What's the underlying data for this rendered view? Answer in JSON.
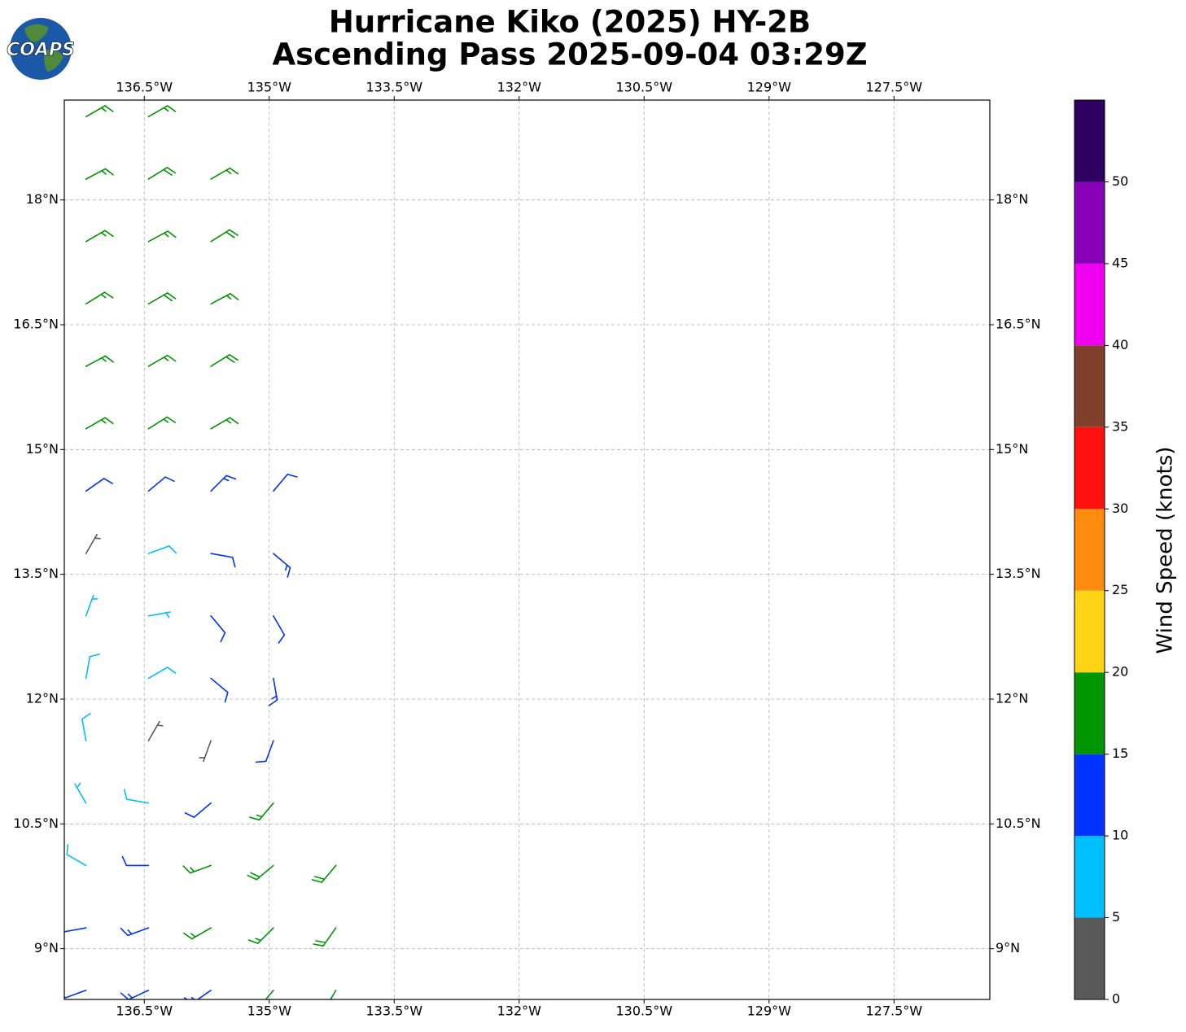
{
  "chart_data": {
    "type": "barbs",
    "title": [
      "Hurricane Kiko (2025) HY-2B",
      "Ascending Pass 2025-09-04 03:29Z"
    ],
    "logo_text": "COAPS",
    "xlim": [
      -137.46,
      -126.35
    ],
    "ylim": [
      8.39,
      19.2
    ],
    "xticks": [
      {
        "value": -136.5,
        "label": "136.5°W"
      },
      {
        "value": -135,
        "label": "135°W"
      },
      {
        "value": -133.5,
        "label": "133.5°W"
      },
      {
        "value": -132,
        "label": "132°W"
      },
      {
        "value": -130.5,
        "label": "130.5°W"
      },
      {
        "value": -129,
        "label": "129°W"
      },
      {
        "value": -127.5,
        "label": "127.5°W"
      }
    ],
    "yticks": [
      {
        "value": 9,
        "label": "9°N"
      },
      {
        "value": 10.5,
        "label": "10.5°N"
      },
      {
        "value": 12,
        "label": "12°N"
      },
      {
        "value": 13.5,
        "label": "13.5°N"
      },
      {
        "value": 15,
        "label": "15°N"
      },
      {
        "value": 16.5,
        "label": "16.5°N"
      },
      {
        "value": 18,
        "label": "18°N"
      }
    ],
    "grid": true,
    "barbs": [
      {
        "lat": 19.0,
        "lon": [
          -137.2,
          -136.45
        ],
        "speed": [
          17,
          16
        ],
        "direction": [
          60,
          60
        ]
      },
      {
        "lat": 18.25,
        "lon": [
          -137.2,
          -136.45,
          -135.7
        ],
        "speed": [
          17,
          18,
          17
        ],
        "direction": [
          62,
          58,
          60
        ]
      },
      {
        "lat": 17.5,
        "lon": [
          -137.2,
          -136.45,
          -135.7
        ],
        "speed": [
          16,
          17,
          18
        ],
        "direction": [
          60,
          62,
          58
        ]
      },
      {
        "lat": 16.75,
        "lon": [
          -137.2,
          -136.45,
          -135.7
        ],
        "speed": [
          17,
          18,
          17
        ],
        "direction": [
          58,
          60,
          62
        ]
      },
      {
        "lat": 16.0,
        "lon": [
          -137.2,
          -136.45,
          -135.7
        ],
        "speed": [
          16,
          17,
          18
        ],
        "direction": [
          62,
          60,
          58
        ]
      },
      {
        "lat": 15.25,
        "lon": [
          -137.2,
          -136.45,
          -135.7
        ],
        "speed": [
          16,
          17,
          17
        ],
        "direction": [
          60,
          58,
          60
        ]
      },
      {
        "lat": 14.5,
        "lon": [
          -137.2,
          -136.45,
          -135.7,
          -134.95
        ],
        "speed": [
          11,
          12,
          13,
          12
        ],
        "direction": [
          55,
          50,
          45,
          40
        ]
      },
      {
        "lat": 13.75,
        "lon": [
          -137.2,
          -136.45,
          -135.7,
          -134.95
        ],
        "speed": [
          3,
          8,
          12,
          13
        ],
        "direction": [
          30,
          70,
          100,
          130
        ]
      },
      {
        "lat": 13.0,
        "lon": [
          -137.2,
          -136.45,
          -135.7,
          -134.95
        ],
        "speed": [
          7,
          6,
          11,
          12
        ],
        "direction": [
          20,
          80,
          140,
          150
        ]
      },
      {
        "lat": 12.25,
        "lon": [
          -137.2,
          -136.45,
          -135.7,
          -134.95
        ],
        "speed": [
          8,
          9,
          10,
          13
        ],
        "direction": [
          10,
          60,
          130,
          170
        ]
      },
      {
        "lat": 11.5,
        "lon": [
          -137.2,
          -136.45,
          -135.7,
          -134.95
        ],
        "speed": [
          8,
          3,
          4,
          12
        ],
        "direction": [
          350,
          30,
          200,
          200
        ]
      },
      {
        "lat": 10.75,
        "lon": [
          -137.2,
          -136.45,
          -135.7,
          -134.95
        ],
        "speed": [
          7,
          9,
          11,
          17
        ],
        "direction": [
          330,
          280,
          230,
          220
        ]
      },
      {
        "lat": 10.0,
        "lon": [
          -137.2,
          -136.45,
          -135.7,
          -134.95,
          -134.2
        ],
        "speed": [
          8,
          12,
          16,
          18,
          19
        ],
        "direction": [
          300,
          270,
          250,
          230,
          220
        ]
      },
      {
        "lat": 9.25,
        "lon": [
          -137.2,
          -136.45,
          -135.7,
          -134.95,
          -134.2
        ],
        "speed": [
          11,
          13,
          15,
          17,
          18
        ],
        "direction": [
          260,
          250,
          240,
          225,
          215
        ]
      },
      {
        "lat": 8.5,
        "lon": [
          -137.2,
          -136.45,
          -135.7,
          -134.95,
          -134.2
        ],
        "speed": [
          12,
          13,
          14,
          16,
          17
        ],
        "direction": [
          250,
          245,
          235,
          220,
          210
        ]
      }
    ],
    "colorbar": {
      "label": "Wind Speed (knots)",
      "bins": [
        0,
        5,
        10,
        15,
        20,
        25,
        30,
        35,
        40,
        45,
        50,
        55
      ],
      "colors": [
        "#595959",
        "#00bfff",
        "#0033ff",
        "#009600",
        "#ffd414",
        "#ff8c0f",
        "#ff1010",
        "#803f2a",
        "#f000f0",
        "#8800b8",
        "#2d0060"
      ],
      "ticks": [
        0,
        5,
        10,
        15,
        20,
        25,
        30,
        35,
        40,
        45,
        50
      ]
    }
  }
}
